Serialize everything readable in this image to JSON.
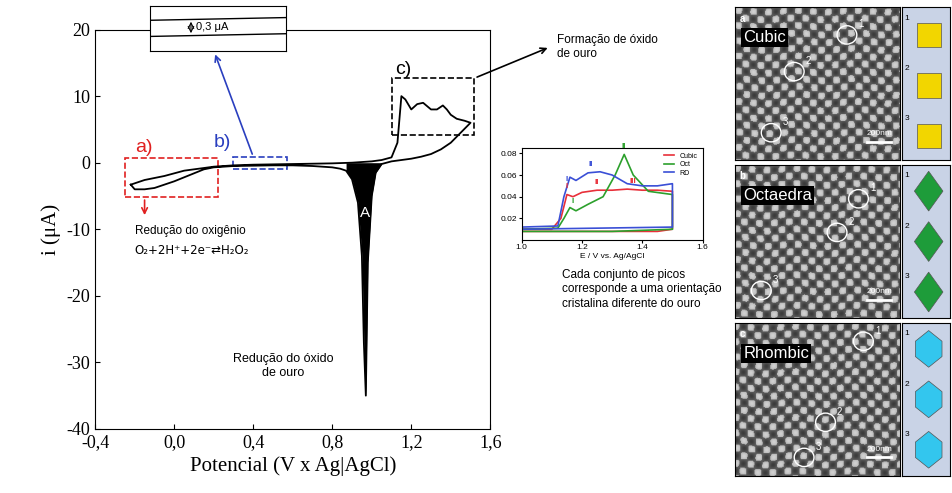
{
  "chart_data": [
    {
      "type": "line",
      "x_label": "Potencial (V x Ag|AgCl)",
      "y_label": "i (μA)",
      "xlim": [
        -0.4,
        1.6
      ],
      "xticks": [
        {
          "value": -0.4,
          "label": "-0,4"
        },
        {
          "value": 0.0,
          "label": "0,0"
        },
        {
          "value": 0.4,
          "label": "0,4"
        },
        {
          "value": 0.8,
          "label": "0,8"
        },
        {
          "value": 1.2,
          "label": "1,2"
        },
        {
          "value": 1.6,
          "label": "1,6"
        }
      ],
      "ylim": [
        -40,
        20
      ],
      "yticks": [
        -40,
        -30,
        -20,
        -10,
        0,
        10,
        20
      ],
      "grid": false,
      "filled_peak_x": [
        0.85,
        1.07
      ],
      "series": [
        {
          "color": "#000000",
          "x": [
            -0.22,
            -0.15,
            -0.1,
            -0.05,
            0.0,
            0.05,
            0.1,
            0.15,
            0.2,
            0.3,
            0.4,
            0.5,
            0.6,
            0.7,
            0.8,
            0.9,
            1.0,
            1.05,
            1.1,
            1.13,
            1.15,
            1.17,
            1.2,
            1.23,
            1.26,
            1.3,
            1.33,
            1.36,
            1.38,
            1.4,
            1.43,
            1.47,
            1.5,
            1.45,
            1.4,
            1.35,
            1.3,
            1.25,
            1.2,
            1.15,
            1.1,
            1.05,
            1.02,
            1.0,
            0.98,
            0.97,
            0.96,
            0.95,
            0.93,
            0.9,
            0.87,
            0.84,
            0.8,
            0.7,
            0.6,
            0.5,
            0.4,
            0.3,
            0.2,
            0.15,
            0.1,
            0.05,
            0.0,
            -0.05,
            -0.1,
            -0.15,
            -0.2,
            -0.22
          ],
          "values": [
            -3.3,
            -2.6,
            -2.3,
            -2.0,
            -1.6,
            -1.2,
            -1.0,
            -0.8,
            -0.6,
            -0.4,
            -0.3,
            -0.25,
            -0.2,
            -0.15,
            -0.1,
            0.0,
            0.2,
            0.4,
            0.8,
            3.0,
            10.0,
            9.5,
            8.0,
            8.8,
            9.0,
            8.0,
            8.0,
            8.6,
            8.0,
            7.2,
            6.6,
            6.3,
            6.0,
            4.5,
            3.0,
            2.0,
            1.3,
            0.9,
            0.6,
            0.4,
            0.2,
            -0.2,
            -1.5,
            -5,
            -15,
            -35,
            -27,
            -14,
            -6,
            -2.5,
            -1.2,
            -0.9,
            -0.7,
            -0.5,
            -0.4,
            -0.4,
            -0.45,
            -0.5,
            -0.7,
            -1.0,
            -1.6,
            -2.2,
            -2.8,
            -3.3,
            -3.8,
            -4.0,
            -4.0,
            -3.3
          ]
        }
      ]
    },
    {
      "type": "line",
      "x_label": "E / V vs. Ag/AgCl",
      "xlim": [
        1.0,
        1.6
      ],
      "xticks": [
        1.0,
        1.2,
        1.4,
        1.6
      ],
      "ylim": [
        0,
        0.085
      ],
      "yticks": [
        0.02,
        0.04,
        0.06,
        0.08
      ],
      "grid": false,
      "legend": "upper right",
      "series": [
        {
          "name": "Cubic",
          "color": "#e8303a",
          "x": [
            1.0,
            1.1,
            1.13,
            1.15,
            1.17,
            1.2,
            1.25,
            1.3,
            1.35,
            1.4,
            1.45,
            1.5,
            1.5,
            1.45,
            1.3,
            1.0
          ],
          "values": [
            0.01,
            0.01,
            0.02,
            0.042,
            0.04,
            0.044,
            0.046,
            0.046,
            0.047,
            0.046,
            0.046,
            0.045,
            0.01,
            0.008,
            0.008,
            0.008
          ]
        },
        {
          "name": "Oct",
          "color": "#2ca02c",
          "x": [
            1.0,
            1.12,
            1.14,
            1.16,
            1.18,
            1.22,
            1.27,
            1.31,
            1.34,
            1.37,
            1.42,
            1.5,
            1.5,
            1.3,
            1.0
          ],
          "values": [
            0.01,
            0.011,
            0.02,
            0.03,
            0.027,
            0.033,
            0.04,
            0.06,
            0.079,
            0.06,
            0.045,
            0.042,
            0.01,
            0.008,
            0.008
          ]
        },
        {
          "name": "RD",
          "color": "#3a4fd6",
          "x": [
            1.0,
            1.12,
            1.14,
            1.16,
            1.18,
            1.22,
            1.26,
            1.3,
            1.35,
            1.4,
            1.45,
            1.5,
            1.5,
            1.0
          ],
          "values": [
            0.012,
            0.013,
            0.04,
            0.058,
            0.055,
            0.062,
            0.063,
            0.06,
            0.052,
            0.05,
            0.05,
            0.052,
            0.012,
            0.01
          ]
        }
      ],
      "peak_labels": [
        {
          "series": "RD",
          "text": "I",
          "x": 1.15
        },
        {
          "series": "RD",
          "text": "II",
          "x": 1.23
        },
        {
          "series": "Cubic",
          "text": "I",
          "x": 1.15
        },
        {
          "series": "Cubic",
          "text": "II",
          "x": 1.25
        },
        {
          "series": "Cubic",
          "text": "III",
          "x": 1.37
        },
        {
          "series": "Oct",
          "text": "I",
          "x": 1.17
        },
        {
          "series": "Oct",
          "text": "II",
          "x": 1.34
        }
      ]
    }
  ],
  "annotations": {
    "a": "a)",
    "b": "b)",
    "c": "c)",
    "oxygen_reduction": "Redução do oxigênio",
    "oxygen_reaction": "O₂+2H⁺+2e⁻⇄H₂O₂",
    "peak_A": "A",
    "gold_oxide_reduction": "Redução do óxido\nde ouro",
    "zoom_label": "0,3 μA",
    "gold_oxide_formation": "Formação de óxido\nde ouro",
    "caption": "Cada conjunto de picos\ncorresponde a uma orientação\ncristalina diferente do ouro"
  },
  "sem_panels": [
    {
      "letter": "a",
      "label": "Cubic",
      "scale_bar": "200nm",
      "markers": [
        "1",
        "2",
        "3"
      ],
      "color": "#f2d600"
    },
    {
      "letter": "b",
      "label": "Octaedra",
      "scale_bar": "200nm",
      "markers": [
        "1",
        "2",
        "3"
      ],
      "color": "#1e9c3a"
    },
    {
      "letter": "c",
      "label": "Rhombic",
      "scale_bar": "200nm",
      "markers": [
        "1",
        "2",
        "3"
      ],
      "color": "#33c6ee"
    }
  ]
}
